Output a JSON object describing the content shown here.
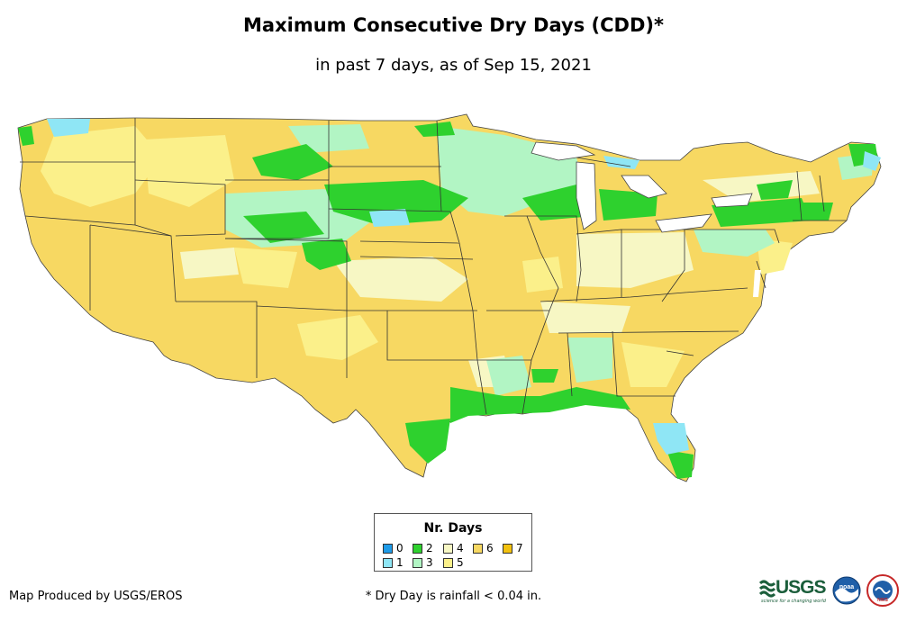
{
  "header": {
    "title": "Maximum Consecutive Dry Days (CDD)*",
    "subtitle": "in past 7 days, as of Sep 15, 2021"
  },
  "legend": {
    "title": "Nr. Days",
    "items": [
      {
        "label": "0",
        "color": "#1e9be8"
      },
      {
        "label": "1",
        "color": "#8fe6f5"
      },
      {
        "label": "2",
        "color": "#2ed12e"
      },
      {
        "label": "3",
        "color": "#b2f5c4"
      },
      {
        "label": "4",
        "color": "#f7f7c4"
      },
      {
        "label": "5",
        "color": "#fbf08a"
      },
      {
        "label": "6",
        "color": "#f7d862"
      },
      {
        "label": "7",
        "color": "#f2c10f"
      }
    ]
  },
  "footer": {
    "credit": "Map Produced by USGS/EROS",
    "footnote": "* Dry Day is rainfall < 0.04 in."
  },
  "logos": {
    "usgs": "USGS",
    "usgs_tagline": "science for a changing world",
    "noaa": "noaa",
    "nws": "NWS"
  }
}
